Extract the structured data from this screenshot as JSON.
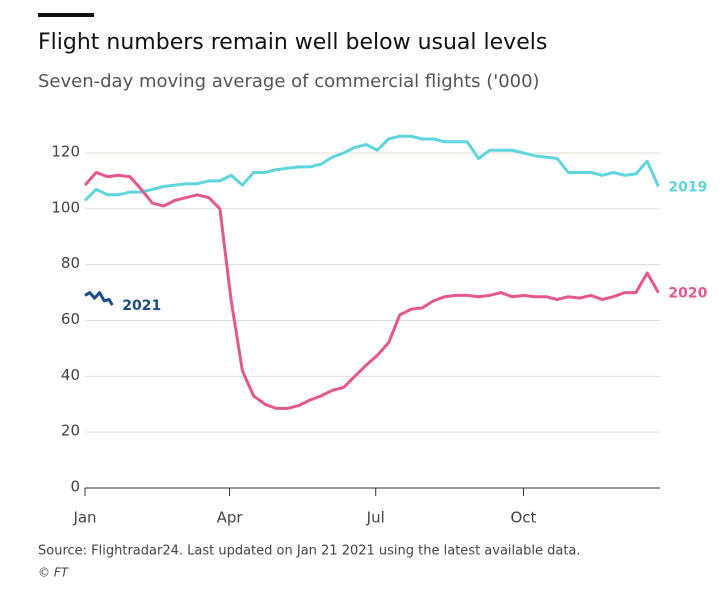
{
  "chart_data": {
    "type": "line",
    "title": "Flight numbers remain well below usual levels",
    "subtitle": "Seven-day moving average of commercial flights ('000)",
    "source": "Source: Flightradar24. Last updated on Jan 21 2021 using the latest available data.",
    "credit": "© FT",
    "xlim": [
      0,
      358
    ],
    "xticks": [
      {
        "value": 0,
        "label": "Jan"
      },
      {
        "value": 90,
        "label": "Apr"
      },
      {
        "value": 181,
        "label": "Jul"
      },
      {
        "value": 273,
        "label": "Oct"
      }
    ],
    "ylim": [
      0,
      125
    ],
    "yticks": [
      0,
      20,
      40,
      60,
      80,
      100,
      120
    ],
    "grid": true,
    "series": [
      {
        "name": "2019",
        "color": "#5fd5de",
        "x": [
          0,
          7,
          14,
          21,
          28,
          35,
          42,
          49,
          56,
          63,
          70,
          77,
          84,
          91,
          98,
          105,
          112,
          119,
          126,
          133,
          140,
          147,
          154,
          161,
          168,
          175,
          182,
          189,
          196,
          203,
          210,
          217,
          224,
          231,
          238,
          245,
          252,
          259,
          266,
          273,
          280,
          287,
          294,
          301,
          308,
          315,
          322,
          329,
          336,
          343,
          350,
          357
        ],
        "values": [
          103,
          107,
          105,
          105,
          106,
          106,
          107,
          108,
          108.5,
          109,
          109,
          110,
          110,
          112,
          108.5,
          113,
          113,
          114,
          114.5,
          115,
          115,
          116,
          118.5,
          120,
          122,
          123,
          121,
          125,
          126,
          126,
          125,
          125,
          124,
          124,
          124,
          118,
          121,
          121,
          121,
          120,
          119,
          118.5,
          118,
          113,
          113,
          113,
          112,
          113,
          112,
          112.5,
          117,
          108
        ]
      },
      {
        "name": "2020",
        "color": "#e5578f",
        "x": [
          0,
          7,
          14,
          21,
          28,
          35,
          42,
          49,
          56,
          63,
          70,
          77,
          84,
          91,
          98,
          105,
          112,
          119,
          126,
          133,
          140,
          147,
          154,
          161,
          168,
          175,
          182,
          189,
          196,
          203,
          210,
          217,
          224,
          231,
          238,
          245,
          252,
          259,
          266,
          273,
          280,
          287,
          294,
          301,
          308,
          315,
          322,
          329,
          336,
          343,
          350,
          357
        ],
        "values": [
          108.5,
          113,
          111.5,
          112,
          111.5,
          107,
          102,
          101,
          103,
          104,
          105,
          104,
          100,
          67,
          42,
          33,
          30,
          28.5,
          28.5,
          29.5,
          31.5,
          33,
          35,
          36,
          40,
          44,
          47.5,
          52,
          62,
          64,
          64.5,
          67,
          68.5,
          69,
          69,
          68.5,
          69,
          70,
          68.5,
          69,
          68.5,
          68.5,
          67.5,
          68.5,
          68,
          69,
          67.5,
          68.5,
          70,
          70,
          77,
          70
        ]
      },
      {
        "name": "2021",
        "color": "#1a4d8c",
        "x": [
          0,
          3,
          6,
          9,
          12,
          15,
          17
        ],
        "values": [
          69,
          70,
          68,
          70,
          67,
          67.5,
          65.5
        ]
      }
    ]
  }
}
